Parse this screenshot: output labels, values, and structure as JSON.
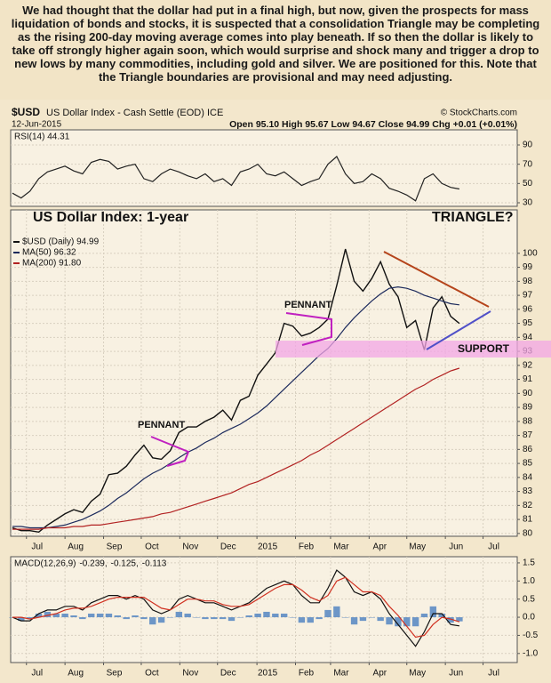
{
  "commentary": "We had thought that the dollar had put in a final high, but now, given the prospects for mass liquidation of bonds and stocks, it is suspected that a consolidation Triangle may be completing as the rising 200-day moving average comes into play beneath. If so then the dollar is likely to take off strongly higher again soon, which would surprise and shock many and trigger a drop to new lows by many commodities, including gold and silver. We are positioned for this. Note that the Triangle boundaries are provisional and may need adjusting.",
  "header": {
    "symbol": "$USD",
    "name": "US Dollar Index - Cash Settle (EOD) ICE",
    "source": "© StockCharts.com",
    "date": "12-Jun-2015",
    "quote": "Open 95.10 High 95.67 Low 94.67 Close 94.99 Chg +0.01 (+0.01%)"
  },
  "chart_data": [
    {
      "type": "line",
      "label": "RSI(14) 44.31",
      "grid": true,
      "xlim": [
        -0.2,
        57.6
      ],
      "ylim": [
        26.3,
        105.7
      ],
      "yticks": [
        30,
        50,
        70,
        90
      ],
      "series": [
        {
          "name": "RSI(14)",
          "color": "#222222",
          "values": [
            40,
            35,
            42,
            55,
            62,
            65,
            68,
            63,
            60,
            72,
            75,
            73,
            65,
            68,
            70,
            55,
            52,
            60,
            65,
            62,
            58,
            55,
            60,
            52,
            55,
            48,
            62,
            65,
            70,
            60,
            58,
            62,
            55,
            48,
            52,
            55,
            70,
            78,
            60,
            50,
            52,
            60,
            55,
            45,
            42,
            38,
            32,
            55,
            60,
            50,
            46,
            44.31
          ]
        }
      ]
    },
    {
      "type": "line",
      "grid": true,
      "xlim": [
        -0.2,
        57.6
      ],
      "ylim": [
        79.8,
        103.1
      ],
      "yticks": [
        80,
        81,
        82,
        83,
        84,
        85,
        86,
        87,
        88,
        89,
        90,
        91,
        92,
        93,
        94,
        95,
        96,
        97,
        98,
        99,
        100
      ],
      "xticks": [
        {
          "value": 1.6,
          "label": "Jul"
        },
        {
          "value": 6.0,
          "label": "Aug"
        },
        {
          "value": 10.4,
          "label": "Sep"
        },
        {
          "value": 14.7,
          "label": "Oct"
        },
        {
          "value": 19.1,
          "label": "Nov"
        },
        {
          "value": 23.4,
          "label": "Dec"
        },
        {
          "value": 27.9,
          "label": "2015"
        },
        {
          "value": 32.3,
          "label": "Feb"
        },
        {
          "value": 36.3,
          "label": "Mar"
        },
        {
          "value": 40.7,
          "label": "Apr"
        },
        {
          "value": 45.0,
          "label": "May"
        },
        {
          "value": 49.4,
          "label": "Jun"
        },
        {
          "value": 53.7,
          "label": "Jul"
        }
      ],
      "series": [
        {
          "name": "$USD (Daily) 94.99",
          "color": "#111111",
          "values": [
            80.4,
            80.2,
            80.2,
            80.1,
            80.6,
            81.0,
            81.4,
            81.7,
            81.5,
            82.3,
            82.8,
            84.2,
            84.3,
            84.8,
            85.6,
            86.3,
            85.4,
            85.3,
            85.9,
            87.2,
            87.6,
            87.6,
            88.0,
            88.3,
            88.8,
            88.1,
            89.5,
            89.8,
            91.3,
            92.1,
            92.9,
            95.0,
            94.8,
            94.1,
            94.3,
            94.7,
            95.3,
            97.7,
            100.3,
            98.0,
            97.3,
            98.2,
            99.4,
            97.8,
            96.9,
            94.7,
            95.2,
            93.1,
            96.1,
            96.9,
            95.5,
            94.99
          ]
        },
        {
          "name": "MA(50) 96.32",
          "color": "#1c2a5c",
          "values": [
            80.5,
            80.5,
            80.4,
            80.4,
            80.4,
            80.5,
            80.6,
            80.8,
            81.0,
            81.3,
            81.6,
            82.0,
            82.5,
            82.9,
            83.4,
            83.9,
            84.3,
            84.6,
            85.0,
            85.4,
            85.8,
            86.1,
            86.5,
            86.8,
            87.2,
            87.5,
            87.8,
            88.2,
            88.6,
            89.1,
            89.7,
            90.3,
            90.9,
            91.5,
            92.1,
            92.7,
            93.2,
            93.9,
            94.7,
            95.4,
            96.0,
            96.6,
            97.1,
            97.5,
            97.6,
            97.5,
            97.3,
            97.0,
            96.8,
            96.6,
            96.4,
            96.32
          ]
        },
        {
          "name": "MA(200) 91.80",
          "color": "#b22222",
          "values": [
            80.3,
            80.3,
            80.3,
            80.3,
            80.4,
            80.4,
            80.4,
            80.5,
            80.5,
            80.6,
            80.6,
            80.7,
            80.8,
            80.9,
            81.0,
            81.1,
            81.2,
            81.4,
            81.5,
            81.7,
            81.9,
            82.1,
            82.3,
            82.5,
            82.7,
            82.9,
            83.2,
            83.5,
            83.7,
            84.0,
            84.3,
            84.6,
            84.9,
            85.2,
            85.6,
            85.9,
            86.3,
            86.7,
            87.1,
            87.5,
            87.9,
            88.3,
            88.7,
            89.1,
            89.5,
            89.9,
            90.3,
            90.6,
            91.0,
            91.3,
            91.6,
            91.8
          ]
        }
      ],
      "annotations": [
        {
          "text": "US Dollar Index: 1-year"
        },
        {
          "text": "TRIANGLE?"
        },
        {
          "text": "PENNANT"
        },
        {
          "text": "PENNANT"
        },
        {
          "text": "SUPPORT"
        }
      ]
    },
    {
      "type": "line",
      "label": "MACD(12,26,9)",
      "grid": true,
      "xlim": [
        -0.2,
        57.6
      ],
      "ylim": [
        -1.25,
        1.67
      ],
      "yticks": [
        1.5,
        {
          "value": 1,
          "label": "1.0"
        },
        0.5,
        {
          "value": 0,
          "label": "0.0"
        },
        -0.5,
        {
          "value": -1,
          "label": "-1.0"
        }
      ],
      "xticks": [
        {
          "value": 1.6,
          "label": "Jul"
        },
        {
          "value": 6.0,
          "label": "Aug"
        },
        {
          "value": 10.4,
          "label": "Sep"
        },
        {
          "value": 14.7,
          "label": "Oct"
        },
        {
          "value": 19.1,
          "label": "Nov"
        },
        {
          "value": 23.4,
          "label": "Dec"
        },
        {
          "value": 27.9,
          "label": "2015"
        },
        {
          "value": 32.3,
          "label": "Feb"
        },
        {
          "value": 36.3,
          "label": "Mar"
        },
        {
          "value": 40.7,
          "label": "Apr"
        },
        {
          "value": 45.0,
          "label": "May"
        },
        {
          "value": 49.4,
          "label": "Jun"
        },
        {
          "value": 53.7,
          "label": "Jul"
        }
      ],
      "series": [
        {
          "name": "-0.113",
          "color": "#4a7fc1",
          "kind": "bar",
          "values": [
            0,
            -0.1,
            -0.05,
            0.1,
            0.15,
            0.1,
            0.1,
            0.05,
            -0.05,
            0.1,
            0.1,
            0.1,
            0.05,
            -0.05,
            0.05,
            -0.05,
            -0.2,
            -0.15,
            0,
            0.15,
            0.1,
            0,
            -0.05,
            -0.05,
            -0.05,
            -0.1,
            0,
            0.05,
            0.1,
            0.15,
            0.1,
            0.1,
            0,
            -0.15,
            -0.15,
            -0.05,
            0.2,
            0.3,
            0,
            -0.2,
            -0.1,
            0,
            -0.1,
            -0.2,
            -0.25,
            -0.25,
            -0.25,
            0.1,
            0.3,
            0.1,
            -0.15,
            -0.113
          ]
        },
        {
          "name": "-0.239,",
          "color": "#111111",
          "values": [
            0.0,
            -0.1,
            -0.1,
            0.1,
            0.2,
            0.2,
            0.3,
            0.3,
            0.2,
            0.4,
            0.5,
            0.6,
            0.6,
            0.5,
            0.6,
            0.5,
            0.2,
            0.1,
            0.2,
            0.5,
            0.6,
            0.5,
            0.4,
            0.4,
            0.3,
            0.2,
            0.3,
            0.4,
            0.6,
            0.8,
            0.9,
            1.0,
            0.9,
            0.6,
            0.4,
            0.4,
            0.8,
            1.3,
            1.1,
            0.7,
            0.6,
            0.7,
            0.5,
            0.1,
            -0.2,
            -0.5,
            -0.8,
            -0.4,
            0.1,
            0.1,
            -0.2,
            -0.239
          ]
        },
        {
          "name": "-0.125,",
          "color": "#d03020",
          "values": [
            0.0,
            0.0,
            -0.05,
            0.0,
            0.05,
            0.1,
            0.2,
            0.25,
            0.25,
            0.3,
            0.4,
            0.5,
            0.55,
            0.55,
            0.55,
            0.55,
            0.4,
            0.25,
            0.2,
            0.35,
            0.5,
            0.5,
            0.45,
            0.45,
            0.35,
            0.3,
            0.3,
            0.35,
            0.5,
            0.65,
            0.8,
            0.9,
            0.9,
            0.75,
            0.55,
            0.45,
            0.6,
            1.0,
            1.1,
            0.9,
            0.7,
            0.7,
            0.6,
            0.3,
            0.05,
            -0.25,
            -0.55,
            -0.5,
            -0.2,
            0.0,
            -0.05,
            -0.125
          ]
        }
      ]
    }
  ]
}
